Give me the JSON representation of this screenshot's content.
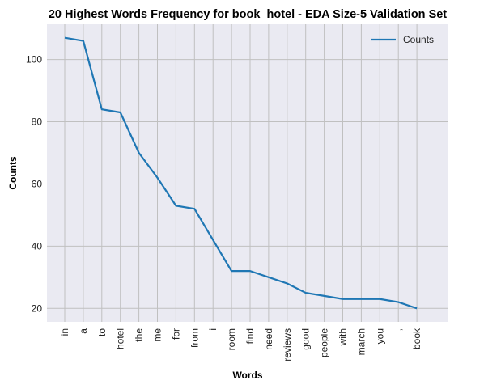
{
  "chart_data": {
    "type": "line",
    "title": "20 Highest Words Frequency for book_hotel - EDA Size-5 Validation Set",
    "xlabel": "Words",
    "ylabel": "Counts",
    "categories": [
      "in",
      "a",
      "to",
      "hotel",
      "the",
      "me",
      "for",
      "from",
      "i",
      "room",
      "find",
      "need",
      "reviews",
      "good",
      "people",
      "with",
      "march",
      "you",
      ",",
      "book"
    ],
    "series": [
      {
        "name": "Counts",
        "values": [
          107,
          106,
          84,
          83,
          70,
          62,
          53,
          52,
          42,
          32,
          32,
          30,
          28,
          25,
          24,
          23,
          23,
          23,
          22,
          20
        ]
      }
    ],
    "ylim": [
      15.65,
      111.35
    ],
    "yticks": [
      20,
      40,
      60,
      80,
      100
    ],
    "grid": true,
    "legend": "top-right",
    "colors": {
      "background": "#eaeaf2",
      "grid": "#c0c0c0",
      "line": "#1f77b4"
    }
  }
}
